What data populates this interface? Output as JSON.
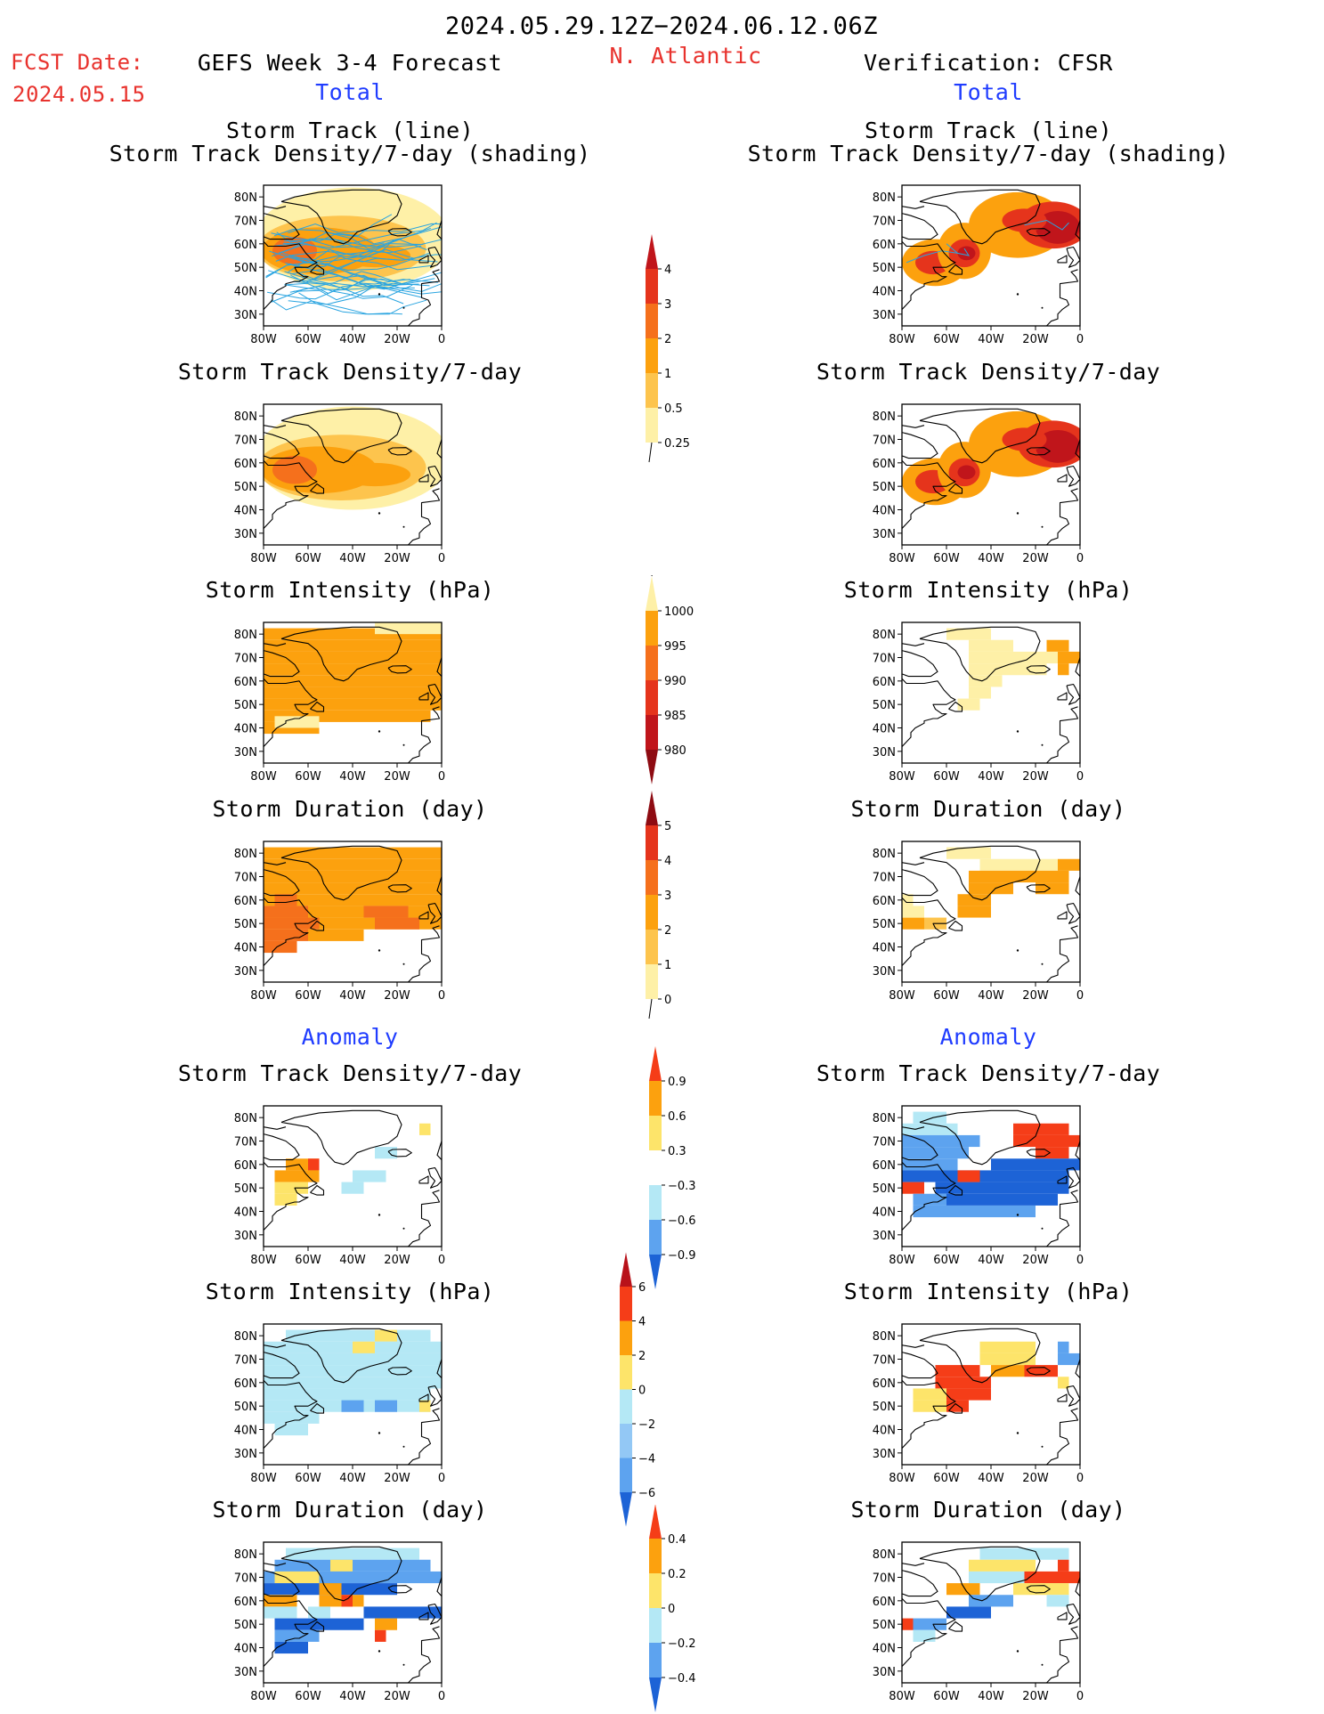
{
  "header": {
    "date_range": "2024.05.29.12Z−2024.06.12.06Z",
    "fcst_label": "FCST Date:",
    "fcst_date": "2024.05.15",
    "left_title": "GEFS Week 3-4 Forecast",
    "region": "N. Atlantic",
    "right_title": "Verification: CFSR",
    "left_total": "Total",
    "right_total": "Total",
    "left_anomaly": "Anomaly",
    "right_anomaly": "Anomaly"
  },
  "titles": {
    "track_line": "Storm Track (line)",
    "track_shading": "Storm Track Density/7-day (shading)",
    "density": "Storm Track Density/7-day",
    "intensity": "Storm Intensity (hPa)",
    "duration": "Storm Duration (day)"
  },
  "axes": {
    "lat_ticks": [
      "80N",
      "70N",
      "60N",
      "50N",
      "40N",
      "30N"
    ],
    "lon_ticks": [
      "80W",
      "60W",
      "40W",
      "20W",
      "0"
    ]
  },
  "colorbars": {
    "density": {
      "labels": [
        "4",
        "3",
        "2",
        "1",
        "0.5",
        "0.25"
      ],
      "colors": [
        "#c0151b",
        "#e5341c",
        "#f5701c",
        "#fca10e",
        "#fdc44d",
        "#fef0a7"
      ]
    },
    "intensity": {
      "labels": [
        "1000",
        "995",
        "990",
        "985",
        "980"
      ],
      "colors": [
        "#fef0a7",
        "#fca10e",
        "#f5701c",
        "#e5341c",
        "#c0151b",
        "#8e0b12"
      ]
    },
    "duration": {
      "labels": [
        "5",
        "4",
        "3",
        "2",
        "1",
        "0"
      ],
      "colors": [
        "#8e0b12",
        "#e5341c",
        "#f5701c",
        "#fca10e",
        "#fdc44d",
        "#fef0a7"
      ]
    },
    "density_anom": {
      "labels": [
        "0.9",
        "0.6",
        "0.3",
        "−0.3",
        "−0.6",
        "−0.9"
      ],
      "colors": [
        "#f53d18",
        "#fca10e",
        "#fde46a",
        "#ffffff",
        "#b4e8f5",
        "#5da3ef",
        "#1d63d6"
      ]
    },
    "intensity_anom": {
      "labels": [
        "6",
        "4",
        "2",
        "0",
        "−2",
        "−4",
        "−6"
      ],
      "colors": [
        "#b8121a",
        "#f53d18",
        "#fca10e",
        "#fde46a",
        "#b4e8f5",
        "#93c8f5",
        "#5da3ef",
        "#1d63d6"
      ]
    },
    "duration_anom": {
      "labels": [
        "0.4",
        "0.2",
        "0",
        "−0.2",
        "−0.4"
      ],
      "colors": [
        "#f53d18",
        "#fca10e",
        "#fde46a",
        "#b4e8f5",
        "#5da3ef",
        "#1d63d6"
      ]
    }
  },
  "palette": {
    "track_line": "#29a4e0",
    "coast": "#000000",
    "c_light": "#fef0a7",
    "c_yellow": "#fdc44d",
    "c_orange": "#fca10e",
    "c_dorange": "#f5701c",
    "c_red": "#e5341c",
    "c_dred": "#c0151b",
    "a_pos_low": "#fde46a",
    "a_pos_mid": "#fca10e",
    "a_pos_high": "#f53d18",
    "a_neg_low": "#b4e8f5",
    "a_neg_mid": "#5da3ef",
    "a_neg_high": "#1d63d6"
  }
}
